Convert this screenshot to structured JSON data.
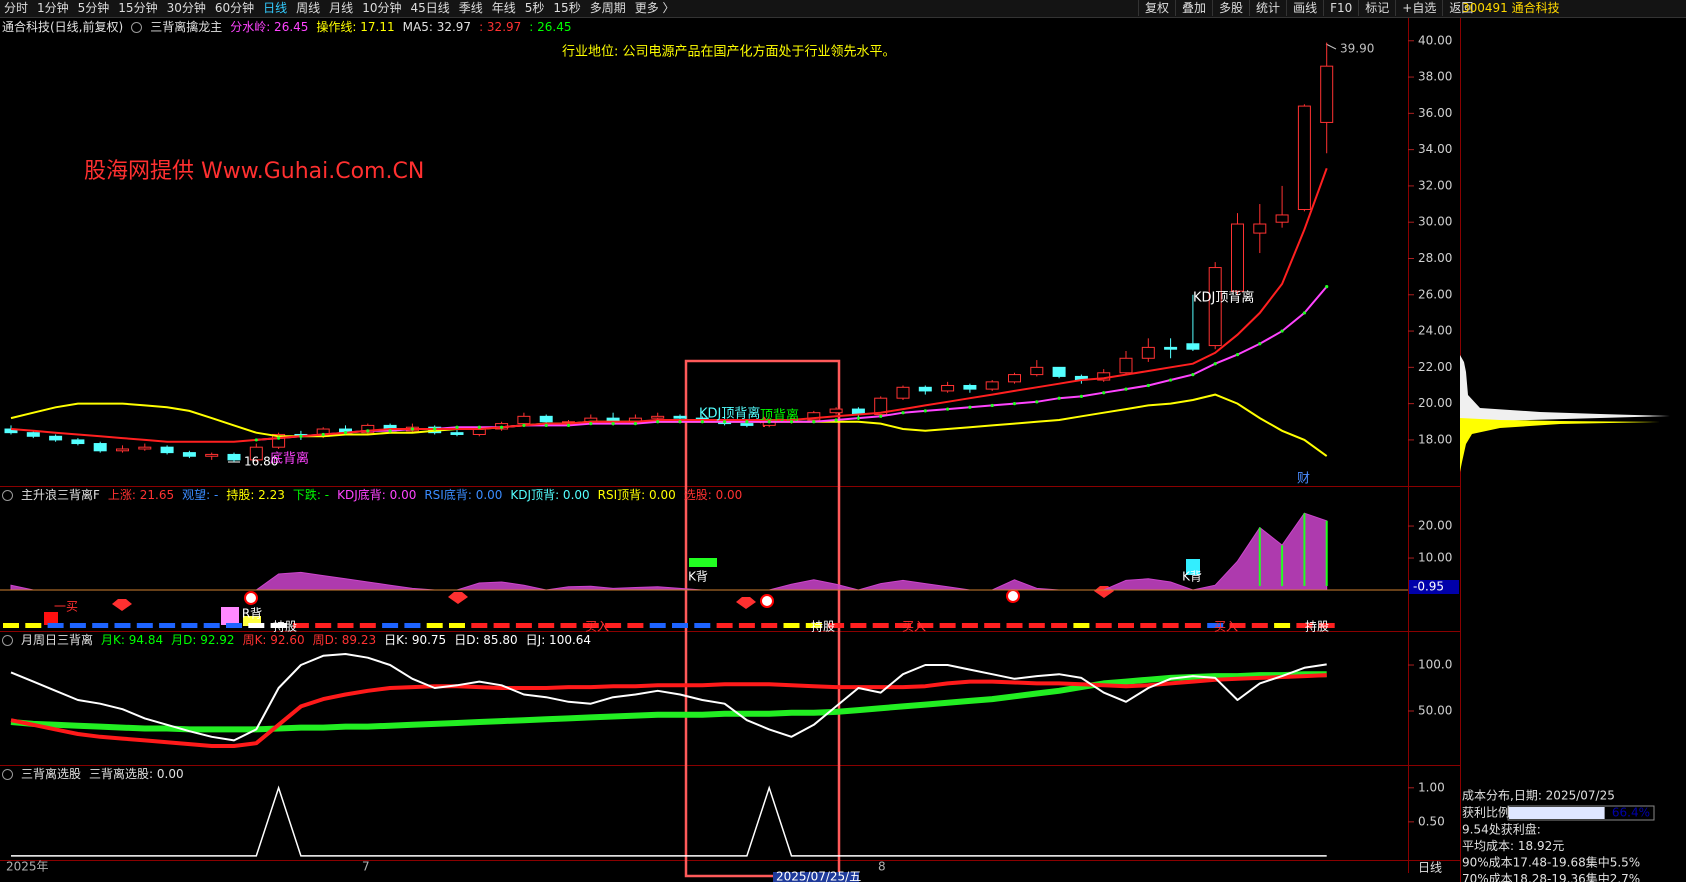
{
  "toolbar": {
    "periods": [
      "分时",
      "1分钟",
      "5分钟",
      "15分钟",
      "30分钟",
      "60分钟",
      "日线",
      "周线",
      "月线",
      "10分钟",
      "45日线",
      "季线",
      "年线",
      "5秒",
      "15秒",
      "多周期",
      "更多 〉"
    ],
    "active": 6,
    "tools": [
      "复权",
      "叠加",
      "多股",
      "统计",
      "画线",
      "F10",
      "标记",
      "+自选",
      "返回"
    ],
    "stock": "300491 通合科技"
  },
  "main": {
    "title": "通合科技(日线,前复权)",
    "indicator": "三背离擒龙主",
    "legend": [
      {
        "text": "分水岭: 26.45",
        "color": "#ff44ff"
      },
      {
        "text": "操作线: 17.11",
        "color": "#ffff00"
      },
      {
        "text": "MA5: 32.97",
        "color": "#e0e0e0"
      },
      {
        "text": ": 32.97",
        "color": "#ff3232"
      },
      {
        "text": ": 26.45",
        "color": "#00ff00"
      }
    ],
    "ylim": [
      15.46,
      41.2
    ],
    "yticks": [
      {
        "value": 18,
        "label": "18.00"
      },
      {
        "value": 20,
        "label": "20.00"
      },
      {
        "value": 22,
        "label": "22.00"
      },
      {
        "value": 24,
        "label": "24.00"
      },
      {
        "value": 26,
        "label": "26.00"
      },
      {
        "value": 28,
        "label": "28.00"
      },
      {
        "value": 30,
        "label": "30.00"
      },
      {
        "value": 32,
        "label": "32.00"
      },
      {
        "value": 34,
        "label": "34.00"
      },
      {
        "value": 36,
        "label": "36.00"
      },
      {
        "value": 38,
        "label": "38.00"
      },
      {
        "value": 40,
        "label": "40.00"
      }
    ],
    "up_color": "#ff3232",
    "down_color": "#54ffff",
    "candles": {
      "open": [
        18.6,
        18.4,
        18.2,
        18.0,
        17.8,
        17.4,
        17.5,
        17.6,
        17.3,
        17.1,
        17.2,
        16.9,
        17.6,
        18.3,
        18.2,
        18.6,
        18.4,
        18.8,
        18.5,
        18.7,
        18.4,
        18.3,
        18.6,
        18.9,
        19.3,
        19.0,
        19.0,
        19.2,
        19.0,
        19.2,
        19.3,
        19.2,
        19.1,
        18.9,
        18.8,
        19.0,
        19.1,
        19.5,
        19.7,
        19.4,
        20.3,
        20.9,
        20.7,
        21.0,
        20.8,
        21.2,
        21.6,
        22.0,
        21.5,
        21.3,
        21.7,
        22.5,
        23.1,
        23.3,
        23.2,
        26.2,
        29.4,
        30.0,
        30.7,
        35.5
      ],
      "close": [
        18.4,
        18.2,
        18.0,
        17.8,
        17.4,
        17.5,
        17.6,
        17.3,
        17.1,
        17.2,
        16.9,
        17.6,
        18.3,
        18.2,
        18.6,
        18.4,
        18.8,
        18.5,
        18.7,
        18.4,
        18.3,
        18.6,
        18.9,
        19.3,
        19.0,
        19.0,
        19.2,
        19.0,
        19.2,
        19.3,
        19.2,
        19.1,
        18.9,
        18.8,
        19.0,
        19.1,
        19.5,
        19.7,
        19.4,
        20.3,
        20.9,
        20.7,
        21.0,
        20.8,
        21.2,
        21.6,
        22.0,
        21.5,
        21.3,
        21.7,
        22.5,
        23.1,
        23.0,
        23.0,
        27.5,
        29.9,
        29.9,
        30.4,
        36.4,
        38.6
      ],
      "low": [
        18.3,
        18.1,
        17.9,
        17.7,
        17.3,
        17.3,
        17.4,
        17.2,
        17.0,
        16.9,
        16.8,
        16.8,
        17.5,
        18.0,
        18.1,
        18.3,
        18.3,
        18.4,
        18.4,
        18.3,
        18.2,
        18.2,
        18.5,
        18.8,
        18.9,
        18.8,
        18.9,
        18.8,
        18.9,
        19.0,
        19.1,
        19.0,
        18.8,
        18.7,
        18.7,
        18.9,
        19.0,
        19.4,
        19.1,
        19.3,
        20.2,
        20.5,
        20.6,
        20.6,
        20.7,
        21.1,
        21.5,
        21.4,
        21.1,
        21.2,
        21.6,
        22.3,
        22.5,
        22.9,
        23.0,
        26.0,
        28.3,
        29.7,
        30.6,
        33.8
      ],
      "high": [
        18.8,
        18.5,
        18.3,
        18.1,
        17.9,
        17.7,
        17.8,
        17.7,
        17.4,
        17.3,
        17.3,
        17.8,
        18.4,
        18.5,
        18.7,
        18.8,
        18.9,
        18.9,
        18.9,
        18.8,
        18.6,
        18.7,
        19.0,
        19.5,
        19.4,
        19.1,
        19.4,
        19.5,
        19.4,
        19.5,
        19.4,
        19.3,
        19.3,
        19.0,
        19.1,
        19.2,
        19.6,
        19.8,
        19.8,
        20.4,
        21.0,
        21.0,
        21.2,
        21.1,
        21.3,
        21.7,
        22.4,
        22.0,
        21.6,
        21.9,
        22.9,
        23.6,
        23.6,
        26.0,
        27.8,
        30.5,
        31.0,
        32.0,
        36.5,
        39.9
      ]
    },
    "lines": [
      {
        "color": "#ffff00",
        "values": [
          19.2,
          19.5,
          19.8,
          20.0,
          20.0,
          20.0,
          19.9,
          19.8,
          19.6,
          19.2,
          18.8,
          18.4,
          18.2,
          18.2,
          18.2,
          18.3,
          18.3,
          18.4,
          18.4,
          18.5,
          18.6,
          18.6,
          18.7,
          18.8,
          18.9,
          18.9,
          19.0,
          19.0,
          19.0,
          19.0,
          19.0,
          19.0,
          19.0,
          19.0,
          19.0,
          19.0,
          19.0,
          19.0,
          19.0,
          18.9,
          18.6,
          18.5,
          18.6,
          18.7,
          18.8,
          18.9,
          19.0,
          19.1,
          19.3,
          19.5,
          19.7,
          19.9,
          20.0,
          20.2,
          20.5,
          20.0,
          19.2,
          18.5,
          18.0,
          17.11
        ]
      },
      {
        "color": "#ff44ff",
        "values": [
          null,
          null,
          null,
          null,
          null,
          null,
          null,
          null,
          null,
          null,
          null,
          18.0,
          18.1,
          18.2,
          18.3,
          18.4,
          18.5,
          18.5,
          18.6,
          18.6,
          18.7,
          18.7,
          18.7,
          18.8,
          18.8,
          18.8,
          18.9,
          18.9,
          18.9,
          19.0,
          19.0,
          19.0,
          19.0,
          19.0,
          19.0,
          19.0,
          19.0,
          19.1,
          19.2,
          19.3,
          19.5,
          19.6,
          19.7,
          19.8,
          19.9,
          20.0,
          20.1,
          20.3,
          20.4,
          20.6,
          20.8,
          21.0,
          21.3,
          21.6,
          22.2,
          22.7,
          23.3,
          24.0,
          25.0,
          26.45
        ]
      },
      {
        "color": "#ff2020",
        "values": [
          18.6,
          18.5,
          18.4,
          18.3,
          18.2,
          18.1,
          18.0,
          17.9,
          17.9,
          17.9,
          17.9,
          18.0,
          18.1,
          18.2,
          18.3,
          18.4,
          18.5,
          18.6,
          18.6,
          18.6,
          18.6,
          18.6,
          18.7,
          18.8,
          18.9,
          18.9,
          19.0,
          19.0,
          19.0,
          19.1,
          19.1,
          19.1,
          19.1,
          19.1,
          19.1,
          19.1,
          19.2,
          19.3,
          19.4,
          19.5,
          19.7,
          19.9,
          20.1,
          20.3,
          20.5,
          20.7,
          20.9,
          21.1,
          21.3,
          21.4,
          21.6,
          21.8,
          22.0,
          22.2,
          22.8,
          23.8,
          25.0,
          26.6,
          29.6,
          32.97
        ]
      }
    ],
    "annotations": [
      {
        "text": "行业地位: 公司电源产品在国产化方面处于行业领先水平。",
        "color": "#ffff00"
      },
      {
        "text": "股海网提供 Www.Guhai.Com.CN",
        "color": "#ff3030"
      },
      {
        "text": "KDJ顶背离",
        "color": "#ffffff"
      },
      {
        "text": "KDJ顶背离",
        "color": "#54ffff"
      },
      {
        "text": "顶背离",
        "color": "#00ff00"
      },
      {
        "text": "39.90",
        "color": "#c0c0c0"
      },
      {
        "text": "16.80",
        "color": "#ffffff"
      },
      {
        "text": "底背离",
        "color": "#ff44ff"
      },
      {
        "text": "财",
        "color": "#4a8cff"
      }
    ]
  },
  "panel2": {
    "title": "主升浪三背离F",
    "legend": [
      {
        "text": "上涨: 21.65",
        "color": "#ff3232"
      },
      {
        "text": "观望: -",
        "color": "#3a8cff"
      },
      {
        "text": "持股: 2.23",
        "color": "#ffff00"
      },
      {
        "text": "下跌: -",
        "color": "#00ff00"
      },
      {
        "text": "KDJ底背: 0.00",
        "color": "#ff44ff"
      },
      {
        "text": "RSI底背: 0.00",
        "color": "#3a8cff"
      },
      {
        "text": "KDJ顶背: 0.00",
        "color": "#54ffff"
      },
      {
        "text": "RSI顶背: 0.00",
        "color": "#ffff00"
      },
      {
        "text": "选股: 0.00",
        "color": "#ff3232"
      }
    ],
    "ylim": [
      -12.8,
      32.2
    ],
    "yticks": [
      {
        "value": 10,
        "label": "10.00"
      },
      {
        "value": 20,
        "label": "20.00"
      }
    ],
    "area": {
      "color": "#cc44cc",
      "values": [
        1.5,
        0,
        0,
        0,
        0,
        0,
        0,
        0,
        0,
        0,
        0,
        0,
        5,
        5.5,
        4.5,
        3.5,
        2.5,
        1.5,
        0.5,
        0,
        0,
        2.2,
        2.5,
        1.5,
        0,
        1,
        1.2,
        0.5,
        0.8,
        1.0,
        0.5,
        0,
        0,
        0,
        0,
        1.8,
        3.2,
        1.8,
        0,
        2.0,
        3.0,
        2.0,
        1.0,
        0,
        0,
        3.2,
        0.5,
        0,
        0,
        0,
        3.0,
        3.5,
        2.5,
        0,
        1.5,
        9,
        19.5,
        14,
        24,
        21.65
      ]
    },
    "strip": [
      "#ffff00",
      "#ffff00",
      "#1e64ff",
      "#1e64ff",
      "#1e64ff",
      "#1e64ff",
      "#1e64ff",
      "#1e64ff",
      "#1e64ff",
      "#1e64ff",
      "#1e64ff",
      "#ffffff",
      "#ffffff",
      "#ff2020",
      "#ff2020",
      "#ff2020",
      "#ff2020",
      "#1e64ff",
      "#1e64ff",
      "#ffff00",
      "#ffff00",
      "#ff2020",
      "#ff2020",
      "#ff2020",
      "#ff2020",
      "#ff2020",
      "#ff2020",
      "#ff2020",
      "#ff2020",
      "#1e64ff",
      "#1e64ff",
      "#1e64ff",
      "#ff2020",
      "#ff2020",
      "#ff2020",
      "#ffff00",
      "#ffff00",
      "#ff2020",
      "#ff2020",
      "#ff2020",
      "#ff2020",
      "#ff2020",
      "#ff2020",
      "#ff2020",
      "#ff2020",
      "#ff2020",
      "#ff2020",
      "#ff2020",
      "#ffff00",
      "#ff2020",
      "#ff2020",
      "#ff2020",
      "#ff2020",
      "#ff2020",
      "#1e64ff",
      "#ff2020",
      "#ff2020",
      "#ffff00",
      "#ff2020",
      "#ff2020"
    ],
    "signals": [
      {
        "text": "一买",
        "color": "#ff3030"
      },
      {
        "text": "R背",
        "color": "#ffffff"
      },
      {
        "text": "持股",
        "color": "#ffffff"
      },
      {
        "text": "买入",
        "color": "#ff3030"
      },
      {
        "text": "K背",
        "color": "#ffffff"
      },
      {
        "text": "持股",
        "color": "#ffffff"
      },
      {
        "text": "买入",
        "color": "#ff3030"
      },
      {
        "text": "K背",
        "color": "#ffffff"
      },
      {
        "text": "买入",
        "color": "#ff3030"
      },
      {
        "text": "持股",
        "color": "#ffffff"
      }
    ],
    "current": "-0.95"
  },
  "panel3": {
    "title": "月周日三背离",
    "legend": [
      {
        "text": "月K: 94.84",
        "color": "#00ff00"
      },
      {
        "text": "月D: 92.92",
        "color": "#00ff00"
      },
      {
        "text": "周K: 92.60",
        "color": "#ff3232"
      },
      {
        "text": "周D: 89.23",
        "color": "#ff3232"
      },
      {
        "text": "日K: 90.75",
        "color": "#ffffff"
      },
      {
        "text": "日D: 85.80",
        "color": "#ffffff"
      },
      {
        "text": "日J: 100.64",
        "color": "#ffffff"
      }
    ],
    "ylim": [
      -8.7,
      135.9
    ],
    "yticks": [
      {
        "value": 50,
        "label": "50.00"
      },
      {
        "value": 100,
        "label": "100.0"
      }
    ],
    "lines": [
      {
        "color": "#22ee22",
        "width": 6,
        "values": [
          38,
          36,
          35,
          34,
          33,
          32,
          31,
          31,
          30,
          30,
          30,
          30,
          31,
          32,
          32,
          33,
          33,
          34,
          35,
          36,
          37,
          38,
          39,
          40,
          41,
          42,
          43,
          44,
          45,
          46,
          46,
          46,
          47,
          47,
          47,
          48,
          48,
          49,
          51,
          53,
          55,
          57,
          59,
          61,
          63,
          66,
          69,
          72,
          76,
          80,
          82,
          84,
          86,
          87,
          88,
          88,
          89,
          89,
          90,
          90
        ]
      },
      {
        "color": "#ff1a1a",
        "width": 4,
        "values": [
          40,
          35,
          30,
          25,
          22,
          20,
          18,
          16,
          14,
          12,
          12,
          15,
          35,
          55,
          63,
          68,
          72,
          75,
          76,
          77,
          77,
          76,
          75,
          75,
          75,
          76,
          76,
          77,
          77,
          78,
          78,
          78,
          79,
          79,
          79,
          78,
          77,
          76,
          76,
          76,
          76,
          77,
          80,
          82,
          82,
          81,
          80,
          80,
          79,
          78,
          77,
          78,
          80,
          82,
          84,
          85,
          86,
          87,
          88,
          89
        ]
      },
      {
        "color": "#ffffff",
        "width": 2,
        "values": [
          92,
          82,
          72,
          62,
          58,
          52,
          42,
          35,
          28,
          22,
          18,
          30,
          75,
          100,
          110,
          112,
          108,
          100,
          85,
          75,
          78,
          82,
          78,
          68,
          65,
          60,
          58,
          65,
          68,
          72,
          68,
          62,
          58,
          40,
          30,
          22,
          35,
          55,
          75,
          70,
          90,
          100,
          100,
          95,
          90,
          85,
          88,
          90,
          86,
          70,
          60,
          75,
          85,
          88,
          86,
          62,
          80,
          88,
          97,
          100.64
        ]
      }
    ]
  },
  "panel4": {
    "title": "三背离选股",
    "legend": [
      {
        "text": "三背离选股: 0.00",
        "color": "#e0e0e0"
      }
    ],
    "ylim": [
      -0.06,
      1.32
    ],
    "yticks": [
      {
        "value": 0.5,
        "label": "0.50"
      },
      {
        "value": 1,
        "label": "1.00"
      }
    ],
    "line": {
      "color": "#ffffff",
      "values": [
        0,
        0,
        0,
        0,
        0,
        0,
        0,
        0,
        0,
        0,
        0,
        0,
        1,
        0,
        0,
        0,
        0,
        0,
        0,
        0,
        0,
        0,
        0,
        0,
        0,
        0,
        0,
        0,
        0,
        0,
        0,
        0,
        0,
        0,
        1,
        0,
        0,
        0,
        0,
        0,
        0,
        0,
        0,
        0,
        0,
        0,
        0,
        0,
        0,
        0,
        0,
        0,
        0,
        0,
        0,
        0,
        0,
        0,
        0,
        0
      ]
    }
  },
  "date_axis": {
    "labels": [
      "2025年",
      "7",
      "2025/07/25/五",
      "8"
    ],
    "period": "日线"
  },
  "cost": {
    "title": "成本分布,日期: 2025/07/25",
    "profit_label": "获利比例:",
    "profit_ratio": 66.4,
    "profit_ratio_label": "66.4%",
    "lines": [
      "9.54处获利盘:",
      "平均成本: 18.92元",
      "90%成本17.48-19.68集中5.5%",
      "70%成本18.28-19.36集中2.7%"
    ]
  }
}
